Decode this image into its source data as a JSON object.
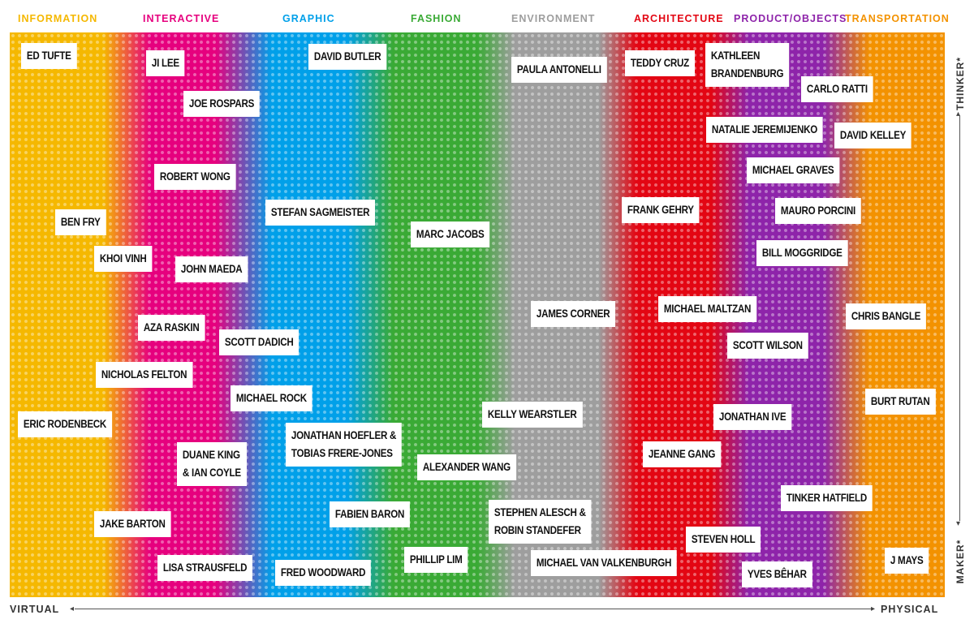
{
  "categories": [
    {
      "label": "INFORMATION",
      "color": "#f5b800"
    },
    {
      "label": "INTERACTIVE",
      "color": "#e6007e"
    },
    {
      "label": "GRAPHIC",
      "color": "#00a0e9"
    },
    {
      "label": "FASHION",
      "color": "#3aaa35"
    },
    {
      "label": "ENVIRONMENT",
      "color": "#9e9e9e"
    },
    {
      "label": "ARCHITECTURE",
      "color": "#e30613"
    },
    {
      "label": "PRODUCT/OBJECTS",
      "color": "#8e24aa"
    },
    {
      "label": "TRANSPORTATION",
      "color": "#f39200"
    }
  ],
  "axes": {
    "x_left": "VIRTUAL",
    "x_right": "PHYSICAL",
    "y_top": "THINKER*",
    "y_bottom": "MAKER*"
  },
  "designers": [
    {
      "id": "ed-tufte",
      "lines": [
        "ED TUFTE"
      ]
    },
    {
      "id": "ji-lee",
      "lines": [
        "JI LEE"
      ]
    },
    {
      "id": "david-butler",
      "lines": [
        "DAVID BUTLER"
      ]
    },
    {
      "id": "paula-antonelli",
      "lines": [
        "PAULA ANTONELLI"
      ]
    },
    {
      "id": "teddy-cruz",
      "lines": [
        "TEDDY CRUZ"
      ]
    },
    {
      "id": "kathleen-brandenburg",
      "lines": [
        "KATHLEEN",
        "BRANDENBURG"
      ]
    },
    {
      "id": "carlo-ratti",
      "lines": [
        "CARLO RATTI"
      ]
    },
    {
      "id": "joe-rospars",
      "lines": [
        "JOE ROSPARS"
      ]
    },
    {
      "id": "natalie-jeremijenko",
      "lines": [
        "NATALIE JEREMIJENKO"
      ]
    },
    {
      "id": "david-kelley",
      "lines": [
        "DAVID KELLEY"
      ]
    },
    {
      "id": "robert-wong",
      "lines": [
        "ROBERT WONG"
      ]
    },
    {
      "id": "michael-graves",
      "lines": [
        "MICHAEL GRAVES"
      ]
    },
    {
      "id": "stefan-sagmeister",
      "lines": [
        "STEFAN SAGMEISTER"
      ]
    },
    {
      "id": "frank-gehry",
      "lines": [
        "FRANK GEHRY"
      ]
    },
    {
      "id": "mauro-porcini",
      "lines": [
        "MAURO PORCINI"
      ]
    },
    {
      "id": "ben-fry",
      "lines": [
        "BEN FRY"
      ]
    },
    {
      "id": "marc-jacobs",
      "lines": [
        "MARC JACOBS"
      ]
    },
    {
      "id": "bill-moggridge",
      "lines": [
        "BILL MOGGRIDGE"
      ]
    },
    {
      "id": "khoi-vinh",
      "lines": [
        "KHOI VINH"
      ]
    },
    {
      "id": "john-maeda",
      "lines": [
        "JOHN MAEDA"
      ]
    },
    {
      "id": "james-corner",
      "lines": [
        "JAMES CORNER"
      ]
    },
    {
      "id": "michael-maltzan",
      "lines": [
        "MICHAEL MALTZAN"
      ]
    },
    {
      "id": "chris-bangle",
      "lines": [
        "CHRIS BANGLE"
      ]
    },
    {
      "id": "aza-raskin",
      "lines": [
        "AZA RASKIN"
      ]
    },
    {
      "id": "scott-dadich",
      "lines": [
        "SCOTT DADICH"
      ]
    },
    {
      "id": "scott-wilson",
      "lines": [
        "SCOTT WILSON"
      ]
    },
    {
      "id": "nicholas-felton",
      "lines": [
        "NICHOLAS FELTON"
      ]
    },
    {
      "id": "michael-rock",
      "lines": [
        "MICHAEL ROCK"
      ]
    },
    {
      "id": "burt-rutan",
      "lines": [
        "BURT RUTAN"
      ]
    },
    {
      "id": "kelly-wearstler",
      "lines": [
        "KELLY WEARSTLER"
      ]
    },
    {
      "id": "jonathan-ive",
      "lines": [
        "JONATHAN IVE"
      ]
    },
    {
      "id": "eric-rodenbeck",
      "lines": [
        "ERIC RODENBECK"
      ]
    },
    {
      "id": "hoefler-frere-jones",
      "lines": [
        "JONATHAN HOEFLER &",
        "TOBIAS FRERE-JONES"
      ]
    },
    {
      "id": "jeanne-gang",
      "lines": [
        "JEANNE GANG"
      ]
    },
    {
      "id": "duane-king-ian-coyle",
      "lines": [
        "DUANE KING",
        "& IAN COYLE"
      ]
    },
    {
      "id": "alexander-wang",
      "lines": [
        "ALEXANDER WANG"
      ]
    },
    {
      "id": "tinker-hatfield",
      "lines": [
        "TINKER HATFIELD"
      ]
    },
    {
      "id": "fabien-baron",
      "lines": [
        "FABIEN BARON"
      ]
    },
    {
      "id": "alesch-standefer",
      "lines": [
        "STEPHEN ALESCH &",
        "ROBIN STANDEFER"
      ]
    },
    {
      "id": "jake-barton",
      "lines": [
        "JAKE BARTON"
      ]
    },
    {
      "id": "steven-holl",
      "lines": [
        "STEVEN HOLL"
      ]
    },
    {
      "id": "phillip-lim",
      "lines": [
        "PHILLIP LIM"
      ]
    },
    {
      "id": "j-mays",
      "lines": [
        "J MAYS"
      ]
    },
    {
      "id": "michael-van-valkenburgh",
      "lines": [
        "MICHAEL VAN VALKENBURGH"
      ]
    },
    {
      "id": "lisa-strausfeld",
      "lines": [
        "LISA STRAUSFELD"
      ]
    },
    {
      "id": "fred-woodward",
      "lines": [
        "FRED WOODWARD"
      ]
    },
    {
      "id": "yves-behar",
      "lines": [
        "YVES BÊHAR"
      ]
    }
  ]
}
